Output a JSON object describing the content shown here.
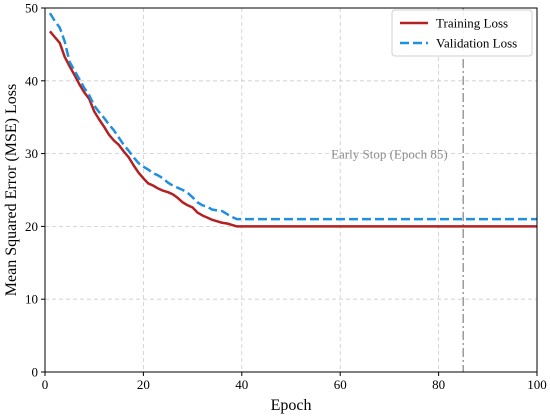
{
  "chart_data": {
    "type": "line",
    "xlabel": "Epoch",
    "ylabel": "Mean Squared Error (MSE) Loss",
    "xlim": [
      0,
      100
    ],
    "ylim": [
      0,
      50
    ],
    "xticks": [
      0,
      20,
      40,
      60,
      80,
      100
    ],
    "yticks": [
      0,
      10,
      20,
      30,
      40,
      50
    ],
    "grid": true,
    "legend_position": "top-right",
    "series": [
      {
        "name": "Training Loss",
        "color": "#b22222",
        "style": "solid",
        "x": [
          1,
          2,
          3,
          4,
          5,
          6,
          7,
          8,
          9,
          10,
          11,
          12,
          13,
          14,
          15,
          16,
          17,
          18,
          19,
          20,
          21,
          22,
          23,
          24,
          25,
          26,
          27,
          28,
          29,
          30,
          31,
          32,
          33,
          34,
          35,
          36,
          37,
          38,
          39,
          40,
          100
        ],
        "values": [
          46.8,
          46.0,
          45.2,
          43.3,
          42.0,
          40.8,
          39.5,
          38.4,
          37.5,
          35.8,
          34.7,
          33.7,
          32.6,
          31.8,
          31.2,
          30.3,
          29.5,
          28.4,
          27.4,
          26.6,
          25.9,
          25.6,
          25.2,
          24.9,
          24.7,
          24.4,
          23.9,
          23.3,
          22.9,
          22.6,
          21.9,
          21.5,
          21.2,
          20.9,
          20.7,
          20.5,
          20.4,
          20.2,
          20.0,
          20.0,
          20.0
        ]
      },
      {
        "name": "Validation Loss",
        "color": "#1f8fe0",
        "style": "dashed",
        "x": [
          1,
          2,
          3,
          4,
          5,
          6,
          7,
          8,
          9,
          10,
          11,
          12,
          13,
          14,
          15,
          16,
          17,
          18,
          19,
          20,
          21,
          22,
          23,
          24,
          25,
          26,
          27,
          28,
          29,
          30,
          31,
          32,
          33,
          34,
          35,
          36,
          37,
          38,
          39,
          40,
          100
        ],
        "values": [
          49.3,
          48.2,
          47.3,
          45.4,
          42.6,
          41.4,
          40.2,
          39.0,
          38.0,
          36.6,
          35.7,
          34.9,
          34.0,
          33.2,
          32.2,
          31.2,
          30.4,
          29.5,
          28.7,
          28.2,
          27.8,
          27.3,
          27.0,
          26.6,
          26.0,
          25.6,
          25.3,
          25.0,
          24.6,
          24.0,
          23.3,
          22.9,
          22.7,
          22.3,
          22.2,
          22.1,
          21.7,
          21.3,
          21.0,
          21.0,
          21.0
        ]
      }
    ],
    "annotations": [
      {
        "type": "vline",
        "x": 85,
        "color": "#8c8c8c",
        "style": "dashdot"
      },
      {
        "type": "text",
        "text": "Early Stop (Epoch 85)",
        "x": 70,
        "y": 29.3,
        "color": "#8c8c8c"
      }
    ]
  }
}
